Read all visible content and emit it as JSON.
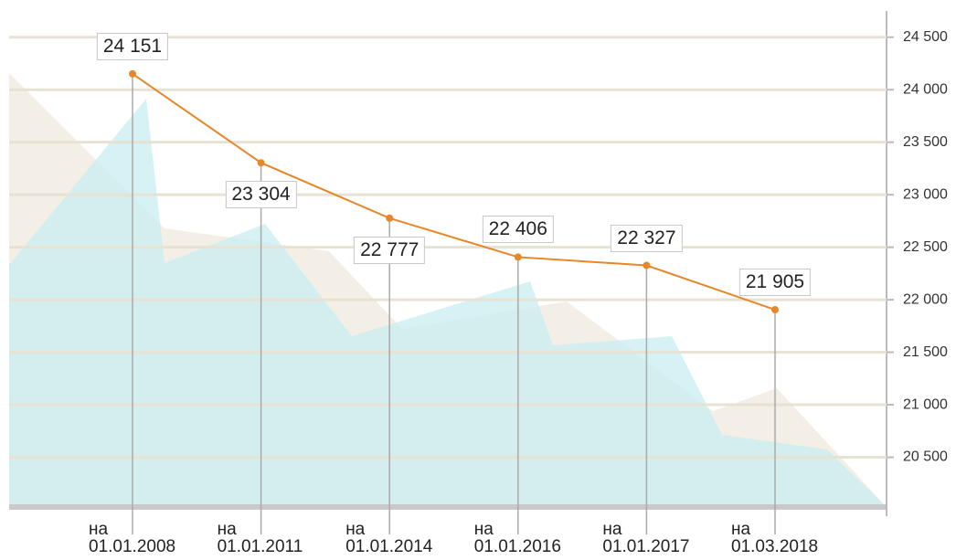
{
  "chart_data": {
    "type": "line",
    "categories": [
      "на\n01.01.2008",
      "на\n01.01.2011",
      "на\n01.01.2014",
      "на\n01.01.2016",
      "на\n01.01.2017",
      "на\n01.03.2018"
    ],
    "values": [
      24151,
      23304,
      22777,
      22406,
      22327,
      21905
    ],
    "value_labels": [
      "24 151",
      "23 304",
      "22 777",
      "22 406",
      "22 327",
      "21 905"
    ],
    "color": "#e8862a",
    "ylim": [
      20000,
      24750
    ],
    "yticks": [
      {
        "value": 20500,
        "label": "20 500"
      },
      {
        "value": 21000,
        "label": "21 000"
      },
      {
        "value": 21500,
        "label": "21 500"
      },
      {
        "value": 22000,
        "label": "22 000"
      },
      {
        "value": 22500,
        "label": "22 500"
      },
      {
        "value": 23000,
        "label": "23 000"
      },
      {
        "value": 23500,
        "label": "23 500"
      },
      {
        "value": 24000,
        "label": "24 000"
      },
      {
        "value": 24500,
        "label": "24 500"
      }
    ],
    "grid": true
  }
}
